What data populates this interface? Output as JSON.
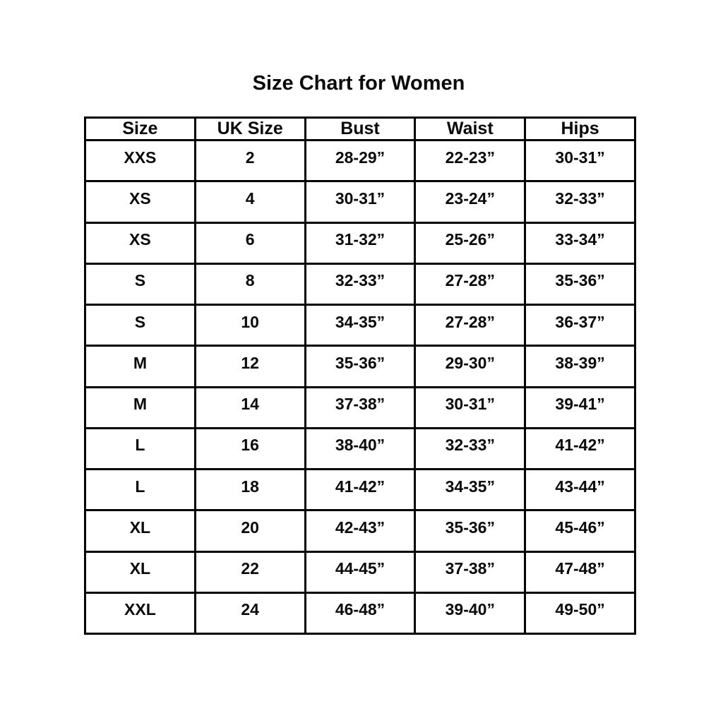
{
  "chart_data": {
    "type": "table",
    "title": "Size Chart for Women",
    "columns": [
      "Size",
      "UK Size",
      "Bust",
      "Waist",
      "Hips"
    ],
    "rows": [
      [
        "XXS",
        "2",
        "28-29”",
        "22-23”",
        "30-31”"
      ],
      [
        "XS",
        "4",
        "30-31”",
        "23-24”",
        "32-33”"
      ],
      [
        "XS",
        "6",
        "31-32”",
        "25-26”",
        "33-34”"
      ],
      [
        "S",
        "8",
        "32-33”",
        "27-28”",
        "35-36”"
      ],
      [
        "S",
        "10",
        "34-35”",
        "27-28”",
        "36-37”"
      ],
      [
        "M",
        "12",
        "35-36”",
        "29-30”",
        "38-39”"
      ],
      [
        "M",
        "14",
        "37-38”",
        "30-31”",
        "39-41”"
      ],
      [
        "L",
        "16",
        "38-40”",
        "32-33”",
        "41-42”"
      ],
      [
        "L",
        "18",
        "41-42”",
        "34-35”",
        "43-44”"
      ],
      [
        "XL",
        "20",
        "42-43”",
        "35-36”",
        "45-46”"
      ],
      [
        "XL",
        "22",
        "44-45”",
        "37-38”",
        "47-48”"
      ],
      [
        "XXL",
        "24",
        "46-48”",
        "39-40”",
        "49-50”"
      ]
    ],
    "layout": {
      "header_row": true,
      "grid": true,
      "column_count": 5,
      "row_count": 12
    }
  },
  "colors": {
    "text": "#0a0a0a",
    "border": "#000000",
    "background": "#ffffff"
  }
}
